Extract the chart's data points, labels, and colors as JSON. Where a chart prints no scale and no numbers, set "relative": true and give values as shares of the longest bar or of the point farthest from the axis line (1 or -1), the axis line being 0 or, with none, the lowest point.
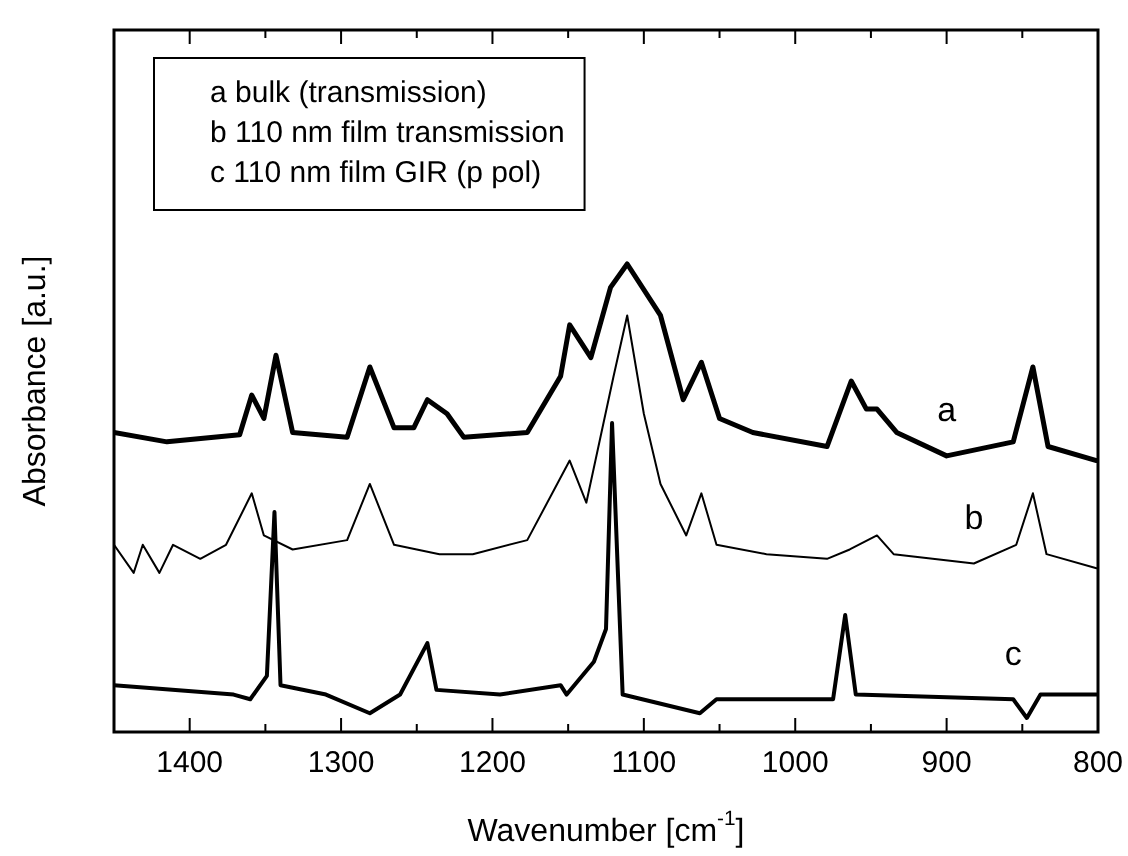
{
  "chart_data": {
    "type": "line",
    "relative": true,
    "xlabel": "Wavenumber [cm$^{-1}$]",
    "ylabel": "Absorbance [a.u.]",
    "annotations": [
      "a bulk (transmission)",
      "b 110 nm film transmission",
      "c 110 nm film GIR (p pol)"
    ],
    "xlim": [
      1450,
      800
    ],
    "xticks": [
      {
        "value": 1450,
        "label": null
      },
      1400,
      {
        "value": 1350,
        "label": null
      },
      1300,
      {
        "value": 1250,
        "label": null
      },
      1200,
      {
        "value": 1150,
        "label": null
      },
      1100,
      {
        "value": 1050,
        "label": null
      },
      1000,
      {
        "value": 950,
        "label": null
      },
      900,
      {
        "value": 850,
        "label": null
      },
      800
    ],
    "grid": false,
    "legend": false,
    "marker": "none",
    "line_style": "solid",
    "series": [
      {
        "name": "a",
        "color": "#000000",
        "x": [
          1450,
          1415,
          1367,
          1359,
          1351,
          1343,
          1332,
          1296,
          1281,
          1265,
          1252,
          1243,
          1230,
          1219,
          1177,
          1155,
          1149,
          1135,
          1122,
          1111,
          1089,
          1074,
          1062,
          1050,
          1028,
          979,
          963,
          953,
          946,
          933,
          900,
          856,
          843,
          833,
          801
        ],
        "values": [
          0.64,
          0.62,
          0.635,
          0.72,
          0.67,
          0.805,
          0.64,
          0.63,
          0.78,
          0.65,
          0.65,
          0.71,
          0.68,
          0.63,
          0.64,
          0.76,
          0.87,
          0.8,
          0.95,
          1.0,
          0.89,
          0.71,
          0.79,
          0.67,
          0.64,
          0.61,
          0.75,
          0.69,
          0.69,
          0.64,
          0.59,
          0.62,
          0.78,
          0.61,
          0.58
        ]
      },
      {
        "name": "b",
        "color": "#000000",
        "x": [
          1450,
          1437,
          1431,
          1420,
          1411,
          1393,
          1376,
          1359,
          1351,
          1332,
          1296,
          1281,
          1265,
          1235,
          1213,
          1177,
          1149,
          1138,
          1120,
          1111,
          1100,
          1089,
          1072,
          1062,
          1052,
          1019,
          979,
          964,
          946,
          935,
          882,
          854,
          843,
          834,
          801
        ],
        "values": [
          0.4,
          0.34,
          0.4,
          0.34,
          0.4,
          0.37,
          0.4,
          0.51,
          0.42,
          0.39,
          0.41,
          0.53,
          0.4,
          0.38,
          0.38,
          0.41,
          0.58,
          0.49,
          0.76,
          0.89,
          0.68,
          0.53,
          0.42,
          0.51,
          0.4,
          0.38,
          0.37,
          0.39,
          0.42,
          0.38,
          0.36,
          0.4,
          0.51,
          0.38,
          0.35
        ]
      },
      {
        "name": "c",
        "color": "#000000",
        "x": [
          1450,
          1371,
          1360,
          1349,
          1344,
          1340,
          1310,
          1281,
          1261,
          1243,
          1237,
          1195,
          1155,
          1151,
          1133,
          1125,
          1121,
          1114,
          1063,
          1052,
          975,
          967,
          960,
          856,
          847,
          838,
          801
        ],
        "values": [
          0.1,
          0.08,
          0.07,
          0.12,
          0.47,
          0.1,
          0.08,
          0.04,
          0.08,
          0.19,
          0.09,
          0.08,
          0.1,
          0.08,
          0.15,
          0.22,
          0.66,
          0.08,
          0.04,
          0.07,
          0.07,
          0.25,
          0.08,
          0.07,
          0.03,
          0.08,
          0.08
        ]
      }
    ]
  }
}
